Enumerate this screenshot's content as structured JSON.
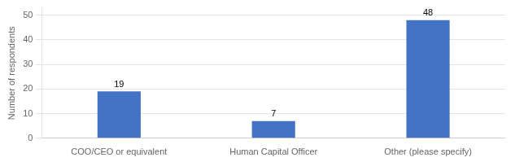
{
  "chart_data": {
    "type": "bar",
    "categories": [
      "COO/CEO or equivalent",
      "Human Capital Officer",
      "Other (please specify)"
    ],
    "values": [
      19,
      7,
      48
    ],
    "color": "#4472C4",
    "ylabel": "Number of respondents",
    "ylim": [
      0,
      53
    ],
    "yticks": [
      0,
      10,
      20,
      30,
      40,
      50
    ],
    "grid": true,
    "data_labels": true
  }
}
